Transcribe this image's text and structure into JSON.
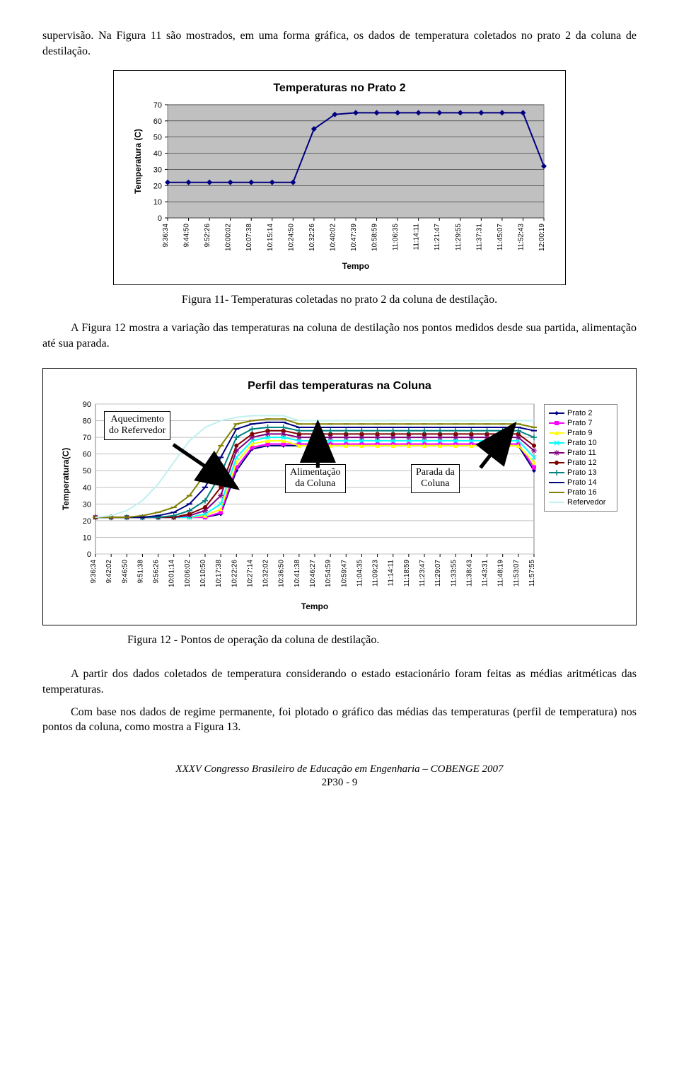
{
  "para1": "supervisão. Na Figura 11 são mostrados, em uma forma gráfica, os dados de temperatura coletados no prato 2 da coluna de destilação.",
  "chart1": {
    "type": "line",
    "title": "Temperaturas no  Prato 2",
    "title_fontsize": 15,
    "ylabel": "Temperatura (C)",
    "xlabel": "Tempo",
    "label_fontsize": 12,
    "background_color": "#ffffff",
    "plot_background": "#c0c0c0",
    "grid_color": "#000000",
    "border_color": "#808080",
    "series_color": "#000080",
    "marker": "diamond",
    "line_width": 2,
    "ylim": [
      0,
      70
    ],
    "ytick_step": 10,
    "yticks": [
      0,
      10,
      20,
      30,
      40,
      50,
      60,
      70
    ],
    "x_categories": [
      "9:36:34",
      "9:44:50",
      "9:52:26",
      "10:00:02",
      "10:07:38",
      "10:15:14",
      "10:24:50",
      "10:32:26",
      "10:40:02",
      "10:47:39",
      "10:58:59",
      "11:06:35",
      "11:14:11",
      "11:21:47",
      "11:29:55",
      "11:37:31",
      "11:45:07",
      "11:52:43",
      "12:00:19"
    ],
    "y_values": [
      22,
      22,
      22,
      22,
      22,
      22,
      22,
      55,
      64,
      65,
      65,
      65,
      65,
      65,
      65,
      65,
      65,
      65,
      32
    ]
  },
  "caption1": "Figura 11-  Temperaturas coletadas no prato  2 da coluna de destilação.",
  "para2": "A Figura 12 mostra a variação das temperaturas na coluna de destilação nos pontos medidos desde sua partida, alimentação até sua parada.",
  "chart2": {
    "type": "line",
    "title": "Perfil das temperaturas na Coluna",
    "title_fontsize": 15,
    "ylabel": "Temperatura(C)",
    "xlabel": "Tempo",
    "label_fontsize": 12,
    "background_color": "#ffffff",
    "plot_background": "#ffffff",
    "grid_color": "#c0c0c0",
    "border_color": "#808080",
    "ylim": [
      0,
      90
    ],
    "ytick_step": 10,
    "yticks": [
      0,
      10,
      20,
      30,
      40,
      50,
      60,
      70,
      80,
      90
    ],
    "x_categories": [
      "9:36:34",
      "9:42:02",
      "9:46:50",
      "9:51:38",
      "9:56:26",
      "10:01:14",
      "10:06:02",
      "10:10:50",
      "10:17:38",
      "10:22:26",
      "10:27:14",
      "10:32:02",
      "10:36:50",
      "10:41:38",
      "10:46:27",
      "10:54:59",
      "10:59:47",
      "11:04:35",
      "11:09:23",
      "11:14:11",
      "11:18:59",
      "11:23:47",
      "11:29:07",
      "11:33:55",
      "11:38:43",
      "11:43:31",
      "11:48:19",
      "11:53:07",
      "11:57:55"
    ],
    "legend": [
      {
        "label": "Prato 2",
        "color": "#000080",
        "marker": "diamond"
      },
      {
        "label": "Prato 7",
        "color": "#ff00ff",
        "marker": "square"
      },
      {
        "label": "Prato 9",
        "color": "#ffff00",
        "marker": "triangle"
      },
      {
        "label": "Prato 10",
        "color": "#00ffff",
        "marker": "x"
      },
      {
        "label": "Prato 11",
        "color": "#800080",
        "marker": "star"
      },
      {
        "label": "Prato 12",
        "color": "#800000",
        "marker": "circle"
      },
      {
        "label": "Prato 13",
        "color": "#008080",
        "marker": "plus"
      },
      {
        "label": "Prato 14",
        "color": "#000080",
        "marker": "dash"
      },
      {
        "label": "Prato 16",
        "color": "#808000",
        "marker": "dash"
      },
      {
        "label": "Refervedor",
        "color": "#c0f0f0",
        "marker": "none"
      }
    ],
    "series": {
      "Prato 2": [
        22,
        22,
        22,
        22,
        22,
        22,
        22,
        22,
        24,
        50,
        63,
        65,
        65,
        65,
        65,
        65,
        65,
        65,
        65,
        65,
        65,
        65,
        65,
        65,
        65,
        65,
        65,
        65,
        50
      ],
      "Prato 7": [
        22,
        22,
        22,
        22,
        22,
        22,
        22,
        22,
        25,
        52,
        64,
        66,
        66,
        66,
        66,
        66,
        66,
        66,
        66,
        66,
        66,
        66,
        66,
        66,
        66,
        66,
        66,
        66,
        52
      ],
      "Prato 9": [
        22,
        22,
        22,
        22,
        22,
        22,
        22,
        23,
        27,
        55,
        66,
        68,
        68,
        65,
        65,
        65,
        65,
        65,
        65,
        65,
        65,
        65,
        65,
        65,
        65,
        65,
        65,
        65,
        55
      ],
      "Prato 10": [
        22,
        22,
        22,
        22,
        22,
        22,
        22,
        24,
        30,
        58,
        68,
        70,
        70,
        68,
        68,
        68,
        68,
        68,
        68,
        68,
        68,
        68,
        68,
        68,
        68,
        68,
        68,
        68,
        58
      ],
      "Prato 11": [
        22,
        22,
        22,
        22,
        22,
        22,
        23,
        26,
        35,
        62,
        70,
        72,
        72,
        70,
        70,
        70,
        70,
        70,
        70,
        70,
        70,
        70,
        70,
        70,
        70,
        70,
        70,
        70,
        62
      ],
      "Prato 12": [
        22,
        22,
        22,
        22,
        22,
        22,
        24,
        28,
        40,
        65,
        72,
        74,
        74,
        72,
        72,
        72,
        72,
        72,
        72,
        72,
        72,
        72,
        72,
        72,
        72,
        72,
        72,
        72,
        65
      ],
      "Prato 13": [
        22,
        22,
        22,
        22,
        22,
        23,
        26,
        32,
        48,
        70,
        75,
        76,
        76,
        74,
        74,
        74,
        74,
        74,
        74,
        74,
        74,
        74,
        74,
        74,
        74,
        74,
        74,
        74,
        70
      ],
      "Prato 14": [
        22,
        22,
        22,
        22,
        23,
        25,
        30,
        40,
        58,
        75,
        78,
        79,
        79,
        76,
        76,
        76,
        76,
        76,
        76,
        76,
        76,
        76,
        76,
        76,
        76,
        76,
        76,
        76,
        74
      ],
      "Prato 16": [
        22,
        22,
        22,
        23,
        25,
        28,
        35,
        48,
        65,
        78,
        80,
        81,
        81,
        78,
        78,
        78,
        78,
        78,
        78,
        78,
        78,
        78,
        78,
        78,
        78,
        78,
        78,
        78,
        76
      ],
      "Refervedor": [
        22,
        23,
        26,
        32,
        42,
        55,
        68,
        76,
        80,
        82,
        83,
        83,
        83,
        80,
        80,
        80,
        80,
        80,
        80,
        80,
        80,
        80,
        80,
        80,
        80,
        80,
        80,
        80,
        80
      ]
    },
    "annotations": [
      {
        "label": "Aquecimento do Refervedor",
        "key": "ann_aquec"
      },
      {
        "label": "Alimentação da Coluna",
        "key": "ann_alim"
      },
      {
        "label": "Parada da Coluna",
        "key": "ann_parada"
      }
    ],
    "ann_aquec_l1": "Aquecimento",
    "ann_aquec_l2": "do Refervedor",
    "ann_alim_l1": "Alimentação",
    "ann_alim_l2": "da Coluna",
    "ann_parada_l1": "Parada da",
    "ann_parada_l2": "Coluna"
  },
  "caption2": "Figura 12 - Pontos de operação da coluna de destilação.",
  "para3": "A partir dos dados coletados de temperatura considerando o estado estacionário foram feitas as médias aritméticas das temperaturas.",
  "para4": "Com base nos dados de regime permanente, foi plotado o gráfico das médias das temperaturas (perfil de temperatura) nos pontos da coluna, como mostra a Figura 13.",
  "footer_line1": "XXXV Congresso Brasileiro de Educação em Engenharia – COBENGE 2007",
  "footer_line2": "2P30 - 9"
}
